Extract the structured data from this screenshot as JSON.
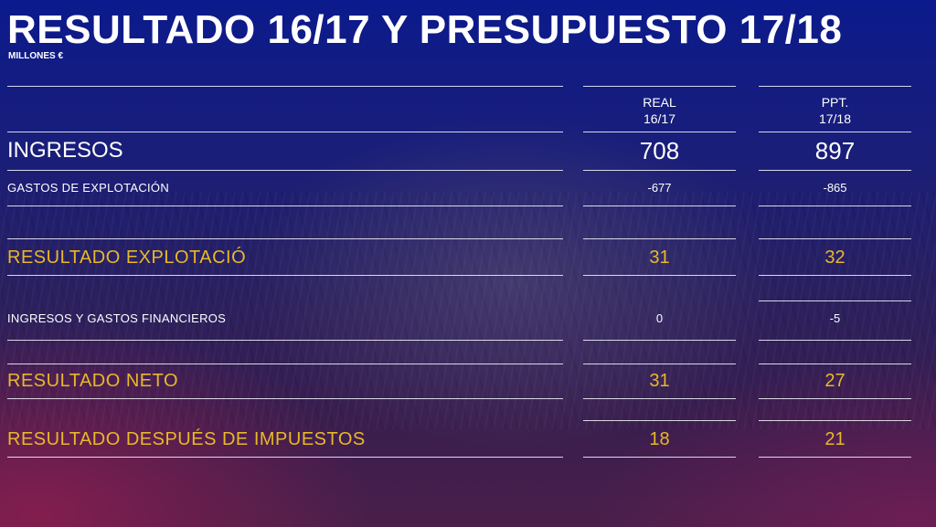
{
  "title": "RESULTADO 16/17 Y PRESUPUESTO 17/18",
  "subtitle": "MILLONES €",
  "columns": [
    {
      "line1": "REAL",
      "line2": "16/17"
    },
    {
      "line1": "PPT.",
      "line2": "17/18"
    }
  ],
  "rows": [
    {
      "label": "INGRESOS",
      "real": "708",
      "ppt": "897"
    },
    {
      "label": "GASTOS DE EXPLOTACIÓN",
      "real": "-677",
      "ppt": "-865"
    },
    {
      "label": "RESULTADO  EXPLOTACIÓ",
      "real": "31",
      "ppt": "32"
    },
    {
      "label": "INGRESOS Y GASTOS FINANCIEROS",
      "real": "0",
      "ppt": "-5"
    },
    {
      "label": "RESULTADO  NETO",
      "real": "31",
      "ppt": "27"
    },
    {
      "label": "RESULTADO  DESPUÉS  DE  IMPUESTOS",
      "real": "18",
      "ppt": "21"
    }
  ],
  "colors": {
    "highlight": "#e8b828",
    "text": "#ffffff",
    "background_top": "#0b1a8c",
    "background_bottom": "#4a1f4a"
  }
}
